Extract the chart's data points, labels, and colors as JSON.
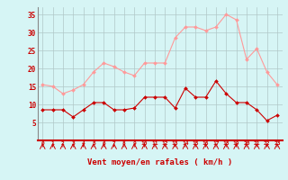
{
  "title": "",
  "xlabel": "Vent moyen/en rafales ( km/h )",
  "background_color": "#d6f5f5",
  "grid_color": "#b0c8c8",
  "line1_color": "#ff9999",
  "line2_color": "#cc0000",
  "x": [
    0,
    1,
    2,
    3,
    4,
    5,
    6,
    7,
    8,
    9,
    10,
    11,
    12,
    13,
    14,
    15,
    16,
    17,
    18,
    19,
    20,
    21,
    22,
    23
  ],
  "y_rafales": [
    15.5,
    15,
    13,
    14,
    15.5,
    19,
    21.5,
    20.5,
    19,
    18,
    21.5,
    21.5,
    21.5,
    28.5,
    31.5,
    31.5,
    30.5,
    31.5,
    35,
    33.5,
    22.5,
    25.5,
    19,
    15.5
  ],
  "y_moyen": [
    8.5,
    8.5,
    8.5,
    6.5,
    8.5,
    10.5,
    10.5,
    8.5,
    8.5,
    9,
    12,
    12,
    12,
    9,
    14.5,
    12,
    12,
    16.5,
    13,
    10.5,
    10.5,
    8.5,
    5.5,
    7
  ],
  "ylim": [
    0,
    37
  ],
  "yticks": [
    5,
    10,
    15,
    20,
    25,
    30,
    35
  ],
  "xticks": [
    0,
    1,
    2,
    3,
    4,
    5,
    6,
    7,
    8,
    9,
    10,
    11,
    12,
    13,
    14,
    15,
    16,
    17,
    18,
    19,
    20,
    21,
    22,
    23
  ]
}
